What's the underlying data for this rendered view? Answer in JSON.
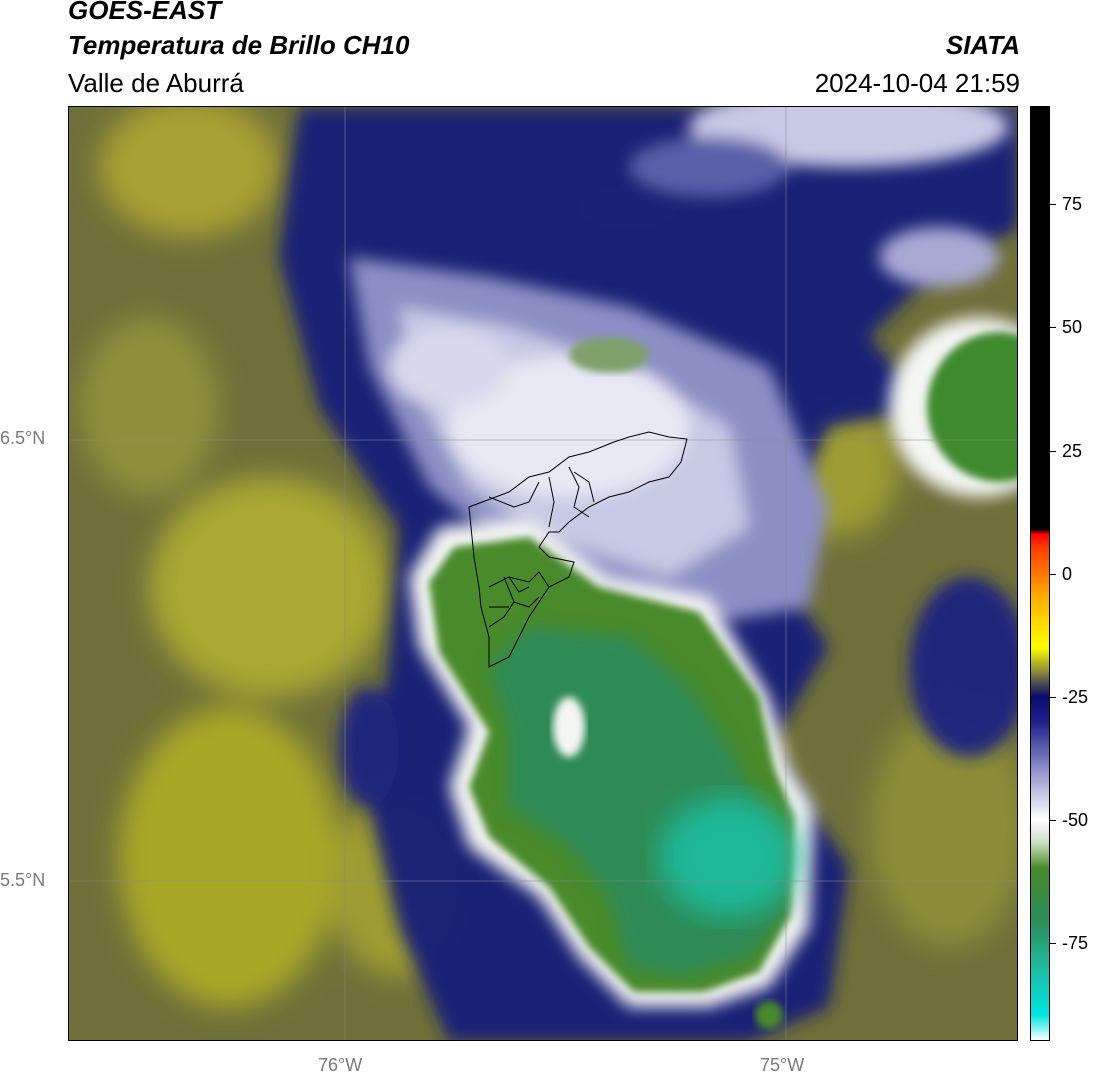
{
  "header": {
    "title_line1": "GOES-EAST",
    "title_line2": "Temperatura de Brillo CH10",
    "region": "Valle de Aburrá",
    "organization": "SIATA",
    "timestamp": "2024-10-04 21:59"
  },
  "map": {
    "lat_labels": [
      "6.5°N",
      "5.5°N"
    ],
    "lon_labels": [
      "76°W",
      "75°W"
    ]
  },
  "colorbar": {
    "tick_labels": [
      "75",
      "50",
      "25",
      "0",
      "-25",
      "-50",
      "-75"
    ],
    "tick_values": [
      75,
      50,
      25,
      0,
      -25,
      -50,
      -75
    ],
    "range": [
      -95,
      95
    ],
    "color_stops": [
      {
        "value": -95,
        "color": "#ffffff"
      },
      {
        "value": -90,
        "color": "#00e5e0"
      },
      {
        "value": -80,
        "color": "#20b9a0"
      },
      {
        "value": -70,
        "color": "#2e8b57"
      },
      {
        "value": -60,
        "color": "#4a8a2a"
      },
      {
        "value": -55,
        "color": "#c8dcc0"
      },
      {
        "value": -50,
        "color": "#ffffff"
      },
      {
        "value": -40,
        "color": "#8f90c8"
      },
      {
        "value": -30,
        "color": "#1b1f8a"
      },
      {
        "value": -25,
        "color": "#0b0b6a"
      },
      {
        "value": -20,
        "color": "#8a8a3a"
      },
      {
        "value": -15,
        "color": "#ffff00"
      },
      {
        "value": -5,
        "color": "#ffb000"
      },
      {
        "value": 5,
        "color": "#ff4000"
      },
      {
        "value": 8,
        "color": "#ff0000"
      },
      {
        "value": 9,
        "color": "#000000"
      },
      {
        "value": 95,
        "color": "#000000"
      }
    ]
  }
}
